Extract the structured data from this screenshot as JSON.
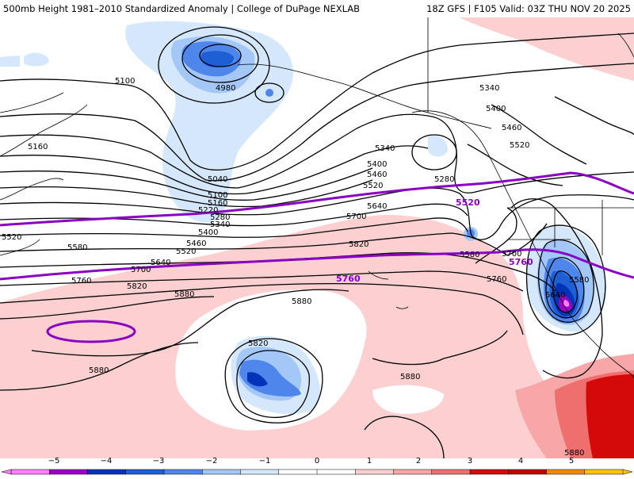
{
  "header": {
    "title_left": "500mb Height 1981–2010 Standardized Anomaly | College of DuPage NEXLAB",
    "title_right": "18Z GFS | F105 Valid: 03Z THU NOV 20 2025"
  },
  "colors": {
    "anomaly_scale": [
      "#ff7fff",
      "#9a00c8",
      "#0033b8",
      "#1f5fd6",
      "#4f86ec",
      "#a3c7f7",
      "#d5e7fb",
      "#ffffff",
      "#ffffff",
      "#fcd0d0",
      "#f7a7a7",
      "#ef6e6e",
      "#d40a0a",
      "#c40000",
      "#f08a00",
      "#ffc400"
    ],
    "contour": "#000000",
    "highlight_contour": "#8a00c2",
    "coastline": "#000000"
  },
  "contour_labels": [
    "5100",
    "4980",
    "5160",
    "5040",
    "5100",
    "5160",
    "5220",
    "5280",
    "5340",
    "5400",
    "5460",
    "5520",
    "5580",
    "5640",
    "5700",
    "5760",
    "5820",
    "5880",
    "5880",
    "5880",
    "5880",
    "5880",
    "5820",
    "5340",
    "5400",
    "5460",
    "5520",
    "5340",
    "5400",
    "5460",
    "5520",
    "5280",
    "5640",
    "5700",
    "5580",
    "5700",
    "5760",
    "5580",
    "5640",
    "5820",
    "5520"
  ],
  "highlight_labels": [
    "5520",
    "5760",
    "5760"
  ],
  "legend": {
    "ticks": [
      "−5",
      "−4",
      "−3",
      "−2",
      "−1",
      "0",
      "1",
      "2",
      "3",
      "4",
      "5"
    ]
  }
}
